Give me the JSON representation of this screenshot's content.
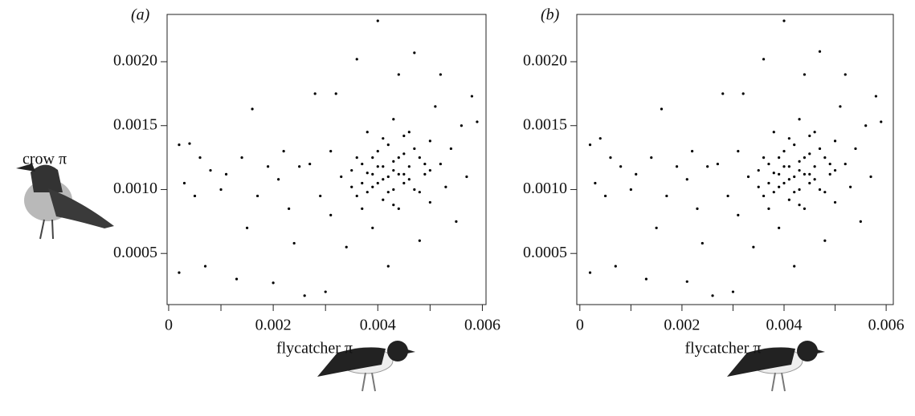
{
  "chart_data": [
    {
      "type": "scatter",
      "label": "(a)",
      "ylabel": "crow π",
      "xlabel": "flycatcher π",
      "color": "#000000",
      "xlim": [
        -3e-05,
        0.00607
      ],
      "ylim": [
        0.0001,
        0.00237
      ],
      "xticks": [
        0,
        0.002,
        0.004,
        0.006
      ],
      "xminor": [
        0.001,
        0.003,
        0.005
      ],
      "yticks": [
        {
          "value": 0.0005,
          "label": "0.0005"
        },
        {
          "value": 0.001,
          "label": "0.0010"
        },
        {
          "value": 0.0015,
          "label": "0.0015"
        },
        {
          "value": 0.002,
          "label": "0.0020"
        }
      ],
      "x": [
        0.0002,
        0.0004,
        0.0003,
        0.0005,
        0.0006,
        0.0008,
        0.0007,
        0.0002,
        0.001,
        0.0011,
        0.0013,
        0.0014,
        0.0016,
        0.0017,
        0.0015,
        0.0019,
        0.002,
        0.0021,
        0.0022,
        0.0023,
        0.0024,
        0.0025,
        0.0026,
        0.0027,
        0.0028,
        0.0029,
        0.003,
        0.0031,
        0.0031,
        0.0032,
        0.0033,
        0.0034,
        0.0035,
        0.0036,
        0.0036,
        0.0037,
        0.0037,
        0.0038,
        0.0038,
        0.0039,
        0.0039,
        0.004,
        0.004,
        0.004,
        0.0041,
        0.0041,
        0.0042,
        0.0042,
        0.0042,
        0.0043,
        0.0043,
        0.0043,
        0.0044,
        0.0044,
        0.0044,
        0.0045,
        0.0045,
        0.0046,
        0.0046,
        0.0047,
        0.0047,
        0.0048,
        0.0048,
        0.0049,
        0.005,
        0.005,
        0.0051,
        0.0052,
        0.0052,
        0.0053,
        0.0054,
        0.0055,
        0.0056,
        0.0057,
        0.0058,
        0.0059,
        0.0039,
        0.0041,
        0.0043,
        0.0045,
        0.004,
        0.0042,
        0.0044,
        0.0038,
        0.0046,
        0.0047,
        0.0036,
        0.0035,
        0.0048,
        0.0049,
        0.0041,
        0.0043,
        0.0039,
        0.0045,
        0.0037,
        0.005
      ],
      "y": [
        0.00135,
        0.00136,
        0.00105,
        0.00095,
        0.00125,
        0.00115,
        0.0004,
        0.00035,
        0.001,
        0.00112,
        0.0003,
        0.00125,
        0.00163,
        0.00095,
        0.0007,
        0.00118,
        0.00027,
        0.00108,
        0.0013,
        0.00085,
        0.00058,
        0.00118,
        0.00017,
        0.0012,
        0.00175,
        0.00095,
        0.0002,
        0.0013,
        0.0008,
        0.00175,
        0.0011,
        0.00055,
        0.00102,
        0.00202,
        0.00125,
        0.00085,
        0.0012,
        0.00098,
        0.00145,
        0.00112,
        0.0007,
        0.00232,
        0.00105,
        0.0013,
        0.00118,
        0.00092,
        0.0011,
        0.00135,
        0.0004,
        0.00122,
        0.001,
        0.00155,
        0.00112,
        0.0019,
        0.00085,
        0.00128,
        0.00105,
        0.00118,
        0.00145,
        0.00207,
        0.001,
        0.00125,
        0.0006,
        0.00112,
        0.00138,
        0.0009,
        0.00165,
        0.0012,
        0.0019,
        0.00102,
        0.00132,
        0.00075,
        0.0015,
        0.0011,
        0.00173,
        0.00153,
        0.00102,
        0.00108,
        0.00115,
        0.00112,
        0.00118,
        0.00098,
        0.00125,
        0.00113,
        0.00108,
        0.00132,
        0.00095,
        0.00115,
        0.00098,
        0.0012,
        0.0014,
        0.00088,
        0.00125,
        0.00142,
        0.00105,
        0.00115
      ]
    },
    {
      "type": "scatter",
      "label": "(b)",
      "xlabel": "flycatcher π",
      "color": "#000000",
      "xlim": [
        -6e-05,
        0.00614
      ],
      "ylim": [
        0.0001,
        0.00237
      ],
      "xticks": [
        0,
        0.002,
        0.004,
        0.006
      ],
      "xminor": [
        0.001,
        0.003,
        0.005
      ],
      "yticks": [
        {
          "value": 0.0005,
          "label": "0.0005"
        },
        {
          "value": 0.001,
          "label": "0.0010"
        },
        {
          "value": 0.0015,
          "label": "0.0015"
        },
        {
          "value": 0.002,
          "label": "0.0020"
        }
      ],
      "x": [
        0.0002,
        0.0004,
        0.0003,
        0.0005,
        0.0006,
        0.0008,
        0.0007,
        0.0002,
        0.001,
        0.0011,
        0.0013,
        0.0014,
        0.0016,
        0.0017,
        0.0015,
        0.0019,
        0.0021,
        0.0021,
        0.0022,
        0.0023,
        0.0024,
        0.0025,
        0.0026,
        0.0027,
        0.0028,
        0.0029,
        0.003,
        0.0031,
        0.0031,
        0.0032,
        0.0033,
        0.0034,
        0.0035,
        0.0036,
        0.0036,
        0.0037,
        0.0037,
        0.0038,
        0.0038,
        0.0039,
        0.0039,
        0.004,
        0.004,
        0.004,
        0.0041,
        0.0041,
        0.0042,
        0.0042,
        0.0042,
        0.0043,
        0.0043,
        0.0043,
        0.0044,
        0.0044,
        0.0044,
        0.0045,
        0.0045,
        0.0046,
        0.0046,
        0.0047,
        0.0047,
        0.0048,
        0.0048,
        0.0049,
        0.005,
        0.005,
        0.0051,
        0.0052,
        0.0052,
        0.0053,
        0.0054,
        0.0055,
        0.0056,
        0.0057,
        0.0058,
        0.0059,
        0.0039,
        0.0041,
        0.0043,
        0.0045,
        0.004,
        0.0042,
        0.0044,
        0.0038,
        0.0046,
        0.0047,
        0.0036,
        0.0035,
        0.0048,
        0.0049,
        0.0041,
        0.0043,
        0.0039,
        0.0045,
        0.0037,
        0.005
      ],
      "y": [
        0.00135,
        0.0014,
        0.00105,
        0.00095,
        0.00125,
        0.00118,
        0.0004,
        0.00035,
        0.001,
        0.00112,
        0.0003,
        0.00125,
        0.00163,
        0.00095,
        0.0007,
        0.00118,
        0.00028,
        0.00108,
        0.0013,
        0.00085,
        0.00058,
        0.00118,
        0.00017,
        0.0012,
        0.00175,
        0.00095,
        0.0002,
        0.0013,
        0.0008,
        0.00175,
        0.0011,
        0.00055,
        0.00102,
        0.00202,
        0.00125,
        0.00085,
        0.0012,
        0.00098,
        0.00145,
        0.00112,
        0.0007,
        0.00232,
        0.00105,
        0.0013,
        0.00118,
        0.00092,
        0.0011,
        0.00135,
        0.0004,
        0.00122,
        0.001,
        0.00155,
        0.00112,
        0.0019,
        0.00085,
        0.00128,
        0.00105,
        0.00118,
        0.00145,
        0.00208,
        0.001,
        0.00125,
        0.0006,
        0.00112,
        0.00138,
        0.0009,
        0.00165,
        0.0012,
        0.0019,
        0.00102,
        0.00132,
        0.00075,
        0.0015,
        0.0011,
        0.00173,
        0.00153,
        0.00102,
        0.00108,
        0.00115,
        0.00112,
        0.00118,
        0.00098,
        0.00125,
        0.00113,
        0.00108,
        0.00132,
        0.00095,
        0.00115,
        0.00098,
        0.0012,
        0.0014,
        0.00088,
        0.00125,
        0.00142,
        0.00105,
        0.00115
      ]
    }
  ]
}
